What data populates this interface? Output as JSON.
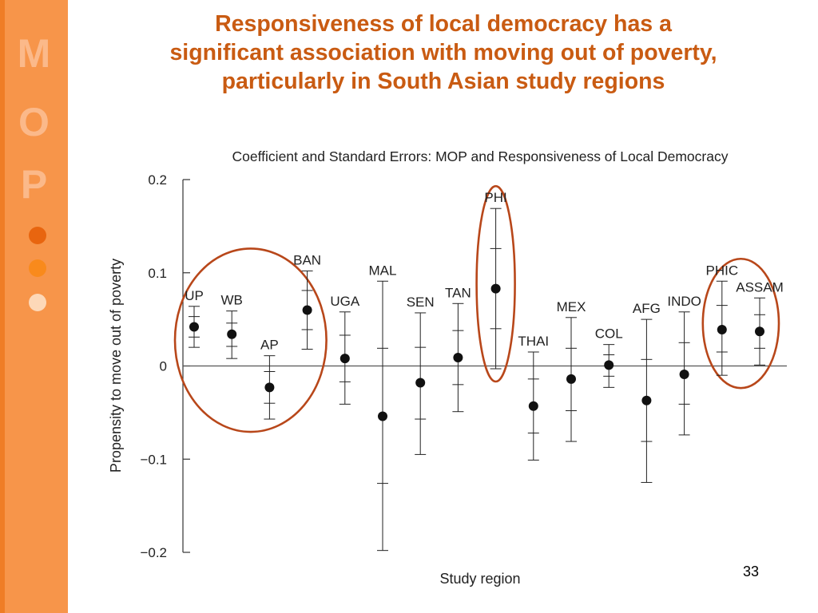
{
  "slide": {
    "title_lines": [
      "Responsiveness of local democracy has a",
      "significant association with moving out of poverty,",
      "particularly in South Asian study regions"
    ],
    "sidebar_letters": [
      "M",
      "O",
      "P"
    ],
    "page_number": "33",
    "colors": {
      "sidebar": "#f7954a",
      "sidebar_edge": "#ef7d26",
      "sidebar_letters": "#fbb98a",
      "title": "#c95b12",
      "dot_1": "#e8650f",
      "dot_2": "#f98a1c",
      "dot_3": "#fdd8b8",
      "highlight_ellipse": "#b8471a"
    }
  },
  "chart_data": {
    "type": "scatter",
    "title": "Coefficient and Standard Errors: MOP and Responsiveness of Local Democracy",
    "xlabel": "Study region",
    "ylabel": "Propensity to move out of poverty",
    "ylim": [
      -0.2,
      0.2
    ],
    "yticks": [
      0.2,
      0.1,
      0,
      -0.1,
      -0.2
    ],
    "ytick_labels": [
      "0.2",
      "0.1",
      "0",
      "−0.1",
      "−0.2"
    ],
    "grid": false,
    "zero_line": true,
    "points": [
      {
        "label": "UP",
        "coef": 0.042,
        "se_upper": 0.064,
        "se_lower": 0.02,
        "inner_upper": 0.053,
        "inner_lower": 0.031
      },
      {
        "label": "WB",
        "coef": 0.034,
        "se_upper": 0.059,
        "se_lower": 0.008,
        "inner_upper": 0.046,
        "inner_lower": 0.021
      },
      {
        "label": "AP",
        "coef": -0.023,
        "se_upper": 0.011,
        "se_lower": -0.057,
        "inner_upper": -0.006,
        "inner_lower": -0.04
      },
      {
        "label": "BAN",
        "coef": 0.06,
        "se_upper": 0.102,
        "se_lower": 0.018,
        "inner_upper": 0.081,
        "inner_lower": 0.039
      },
      {
        "label": "UGA",
        "coef": 0.008,
        "se_upper": 0.058,
        "se_lower": -0.041,
        "inner_upper": 0.033,
        "inner_lower": -0.017
      },
      {
        "label": "MAL",
        "coef": -0.054,
        "se_upper": 0.091,
        "se_lower": -0.198,
        "inner_upper": 0.019,
        "inner_lower": -0.126
      },
      {
        "label": "SEN",
        "coef": -0.018,
        "se_upper": 0.057,
        "se_lower": -0.095,
        "inner_upper": 0.02,
        "inner_lower": -0.057
      },
      {
        "label": "TAN",
        "coef": 0.009,
        "se_upper": 0.067,
        "se_lower": -0.049,
        "inner_upper": 0.038,
        "inner_lower": -0.02
      },
      {
        "label": "PHI",
        "coef": 0.083,
        "se_upper": 0.169,
        "se_lower": -0.003,
        "inner_upper": 0.126,
        "inner_lower": 0.04
      },
      {
        "label": "THAI",
        "coef": -0.043,
        "se_upper": 0.015,
        "se_lower": -0.101,
        "inner_upper": -0.014,
        "inner_lower": -0.072
      },
      {
        "label": "MEX",
        "coef": -0.014,
        "se_upper": 0.052,
        "se_lower": -0.081,
        "inner_upper": 0.019,
        "inner_lower": -0.048
      },
      {
        "label": "COL",
        "coef": 0.001,
        "se_upper": 0.023,
        "se_lower": -0.023,
        "inner_upper": 0.012,
        "inner_lower": -0.011
      },
      {
        "label": "AFG",
        "coef": -0.037,
        "se_upper": 0.05,
        "se_lower": -0.125,
        "inner_upper": 0.007,
        "inner_lower": -0.081
      },
      {
        "label": "INDO",
        "coef": -0.009,
        "se_upper": 0.058,
        "se_lower": -0.074,
        "inner_upper": 0.025,
        "inner_lower": -0.041
      },
      {
        "label": "PHIC",
        "coef": 0.039,
        "se_upper": 0.091,
        "se_lower": -0.01,
        "inner_upper": 0.065,
        "inner_lower": 0.015
      },
      {
        "label": "ASSAM",
        "coef": 0.037,
        "se_upper": 0.073,
        "se_lower": 0.001,
        "inner_upper": 0.055,
        "inner_lower": 0.019
      }
    ],
    "highlight_groups": [
      [
        "UP",
        "WB",
        "AP",
        "BAN"
      ],
      [
        "PHI"
      ],
      [
        "PHIC",
        "ASSAM"
      ]
    ]
  }
}
